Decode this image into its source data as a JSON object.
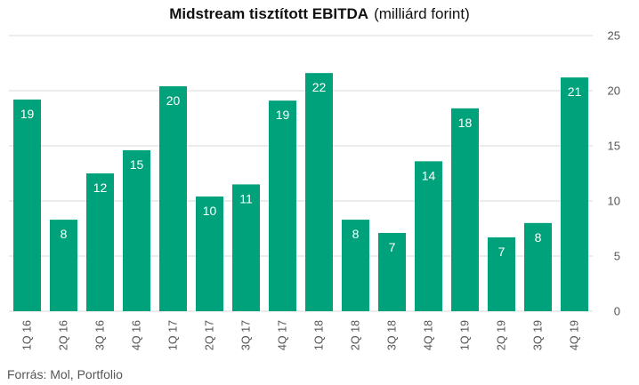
{
  "header": {
    "title": "Midstream tisztított EBITDA",
    "unit": "(milliárd forint)"
  },
  "footer": {
    "source": "Forrás: Mol, Portfolio"
  },
  "colors": {
    "bar": "#00a27b",
    "grid": "#d9d9d9",
    "axis_text": "#555555"
  },
  "chart_data": {
    "type": "bar",
    "title": "Midstream tisztított EBITDA",
    "subtitle": "(milliárd forint)",
    "xlabel": "",
    "ylabel": "",
    "ylim": [
      0,
      25
    ],
    "yticks": [
      0,
      5,
      10,
      15,
      20,
      25
    ],
    "y_axis_position": "right",
    "grid": true,
    "categories": [
      "1Q 16",
      "2Q 16",
      "3Q 16",
      "4Q 16",
      "1Q 17",
      "2Q 17",
      "3Q 17",
      "4Q 17",
      "1Q 18",
      "2Q 18",
      "3Q 18",
      "4Q 18",
      "1Q 19",
      "2Q 19",
      "3Q 19",
      "4Q 19"
    ],
    "values": [
      19.2,
      8.3,
      12.5,
      14.6,
      20.4,
      10.4,
      11.5,
      19.1,
      21.6,
      8.3,
      7.1,
      13.6,
      18.4,
      6.7,
      8.0,
      21.2
    ],
    "data_labels": [
      "19",
      "8",
      "12",
      "15",
      "20",
      "10",
      "11",
      "19",
      "22",
      "8",
      "7",
      "14",
      "18",
      "7",
      "8",
      "21"
    ]
  }
}
